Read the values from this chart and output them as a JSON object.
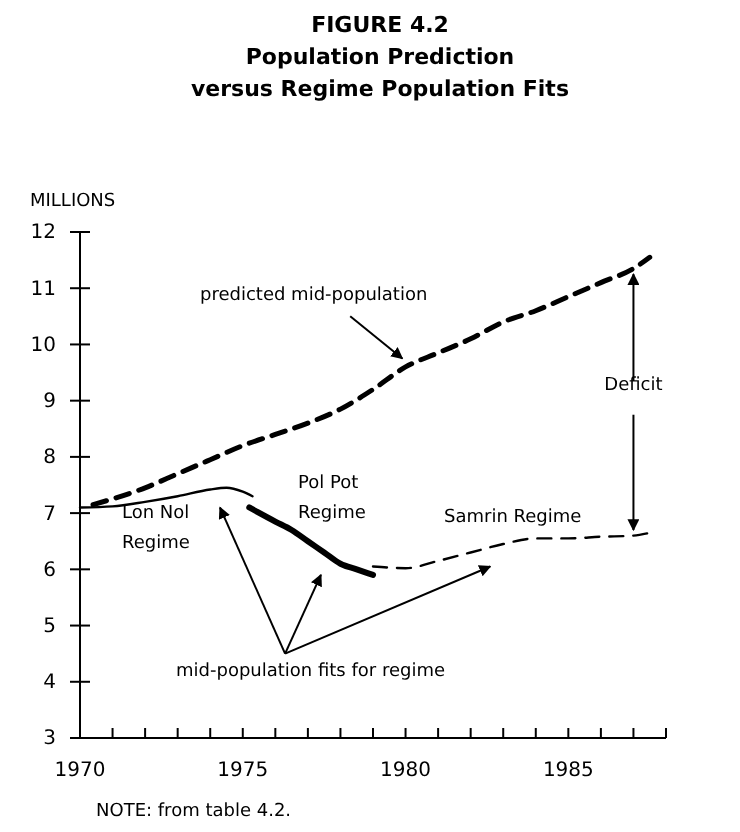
{
  "chart_data": {
    "type": "line",
    "title": "FIGURE 4.2",
    "subtitle": "Population Prediction versus Regime Population Fits",
    "ylabel": "MILLIONS",
    "xlim": [
      1970,
      1988
    ],
    "ylim": [
      3,
      12
    ],
    "xticks": [
      1970,
      {
        "value": 1971,
        "label": null
      },
      {
        "value": 1972,
        "label": null
      },
      {
        "value": 1973,
        "label": null
      },
      {
        "value": 1974,
        "label": null
      },
      1975,
      {
        "value": 1976,
        "label": null
      },
      {
        "value": 1977,
        "label": null
      },
      {
        "value": 1978,
        "label": null
      },
      {
        "value": 1979,
        "label": null
      },
      1980,
      {
        "value": 1981,
        "label": null
      },
      {
        "value": 1982,
        "label": null
      },
      {
        "value": 1983,
        "label": null
      },
      {
        "value": 1984,
        "label": null
      },
      1985,
      {
        "value": 1986,
        "label": null
      },
      {
        "value": 1987,
        "label": null
      },
      {
        "value": 1988,
        "label": null
      }
    ],
    "yticks": [
      3,
      4,
      5,
      6,
      7,
      8,
      9,
      10,
      11,
      12
    ],
    "grid": false,
    "marker": "none",
    "series": [
      {
        "color": "#000000",
        "line_style": "dashed",
        "x": [
          1970.4,
          1972,
          1973,
          1974,
          1975,
          1976,
          1977,
          1978,
          1979,
          1980,
          1981,
          1982,
          1983,
          1984,
          1985,
          1986,
          1987,
          1987.5
        ],
        "values": [
          7.15,
          7.45,
          7.7,
          7.95,
          8.2,
          8.4,
          8.6,
          8.85,
          9.2,
          9.6,
          9.85,
          10.1,
          10.4,
          10.6,
          10.85,
          11.1,
          11.35,
          11.55
        ]
      },
      {
        "color": "#000000",
        "line_style": "solid",
        "x": [
          1970,
          1971,
          1972,
          1973,
          1974,
          1974.5,
          1975,
          1975.3
        ],
        "values": [
          7.1,
          7.12,
          7.2,
          7.3,
          7.42,
          7.45,
          7.38,
          7.3
        ]
      },
      {
        "color": "#000000",
        "line_style": "solid",
        "x": [
          1975.2,
          1976,
          1976.5,
          1977,
          1977.5,
          1978,
          1978.5,
          1979
        ],
        "values": [
          7.1,
          6.85,
          6.7,
          6.5,
          6.3,
          6.1,
          6.0,
          5.9
        ]
      },
      {
        "color": "#000000",
        "line_style": "dashed",
        "x": [
          1979,
          1980,
          1981,
          1982,
          1983,
          1984,
          1985,
          1986,
          1987,
          1987.5
        ],
        "values": [
          6.05,
          6.02,
          6.15,
          6.3,
          6.45,
          6.55,
          6.55,
          6.58,
          6.6,
          6.65
        ]
      }
    ],
    "annotations": [
      "predicted mid-population",
      "Lon Nol Regime",
      "Pol Pot Regime",
      "Samrin Regime",
      {
        "text": "Deficit",
        "x": 1987,
        "y": 11.35
      },
      "mid-population fits for regime",
      "NOTE: from table 4.2."
    ]
  }
}
